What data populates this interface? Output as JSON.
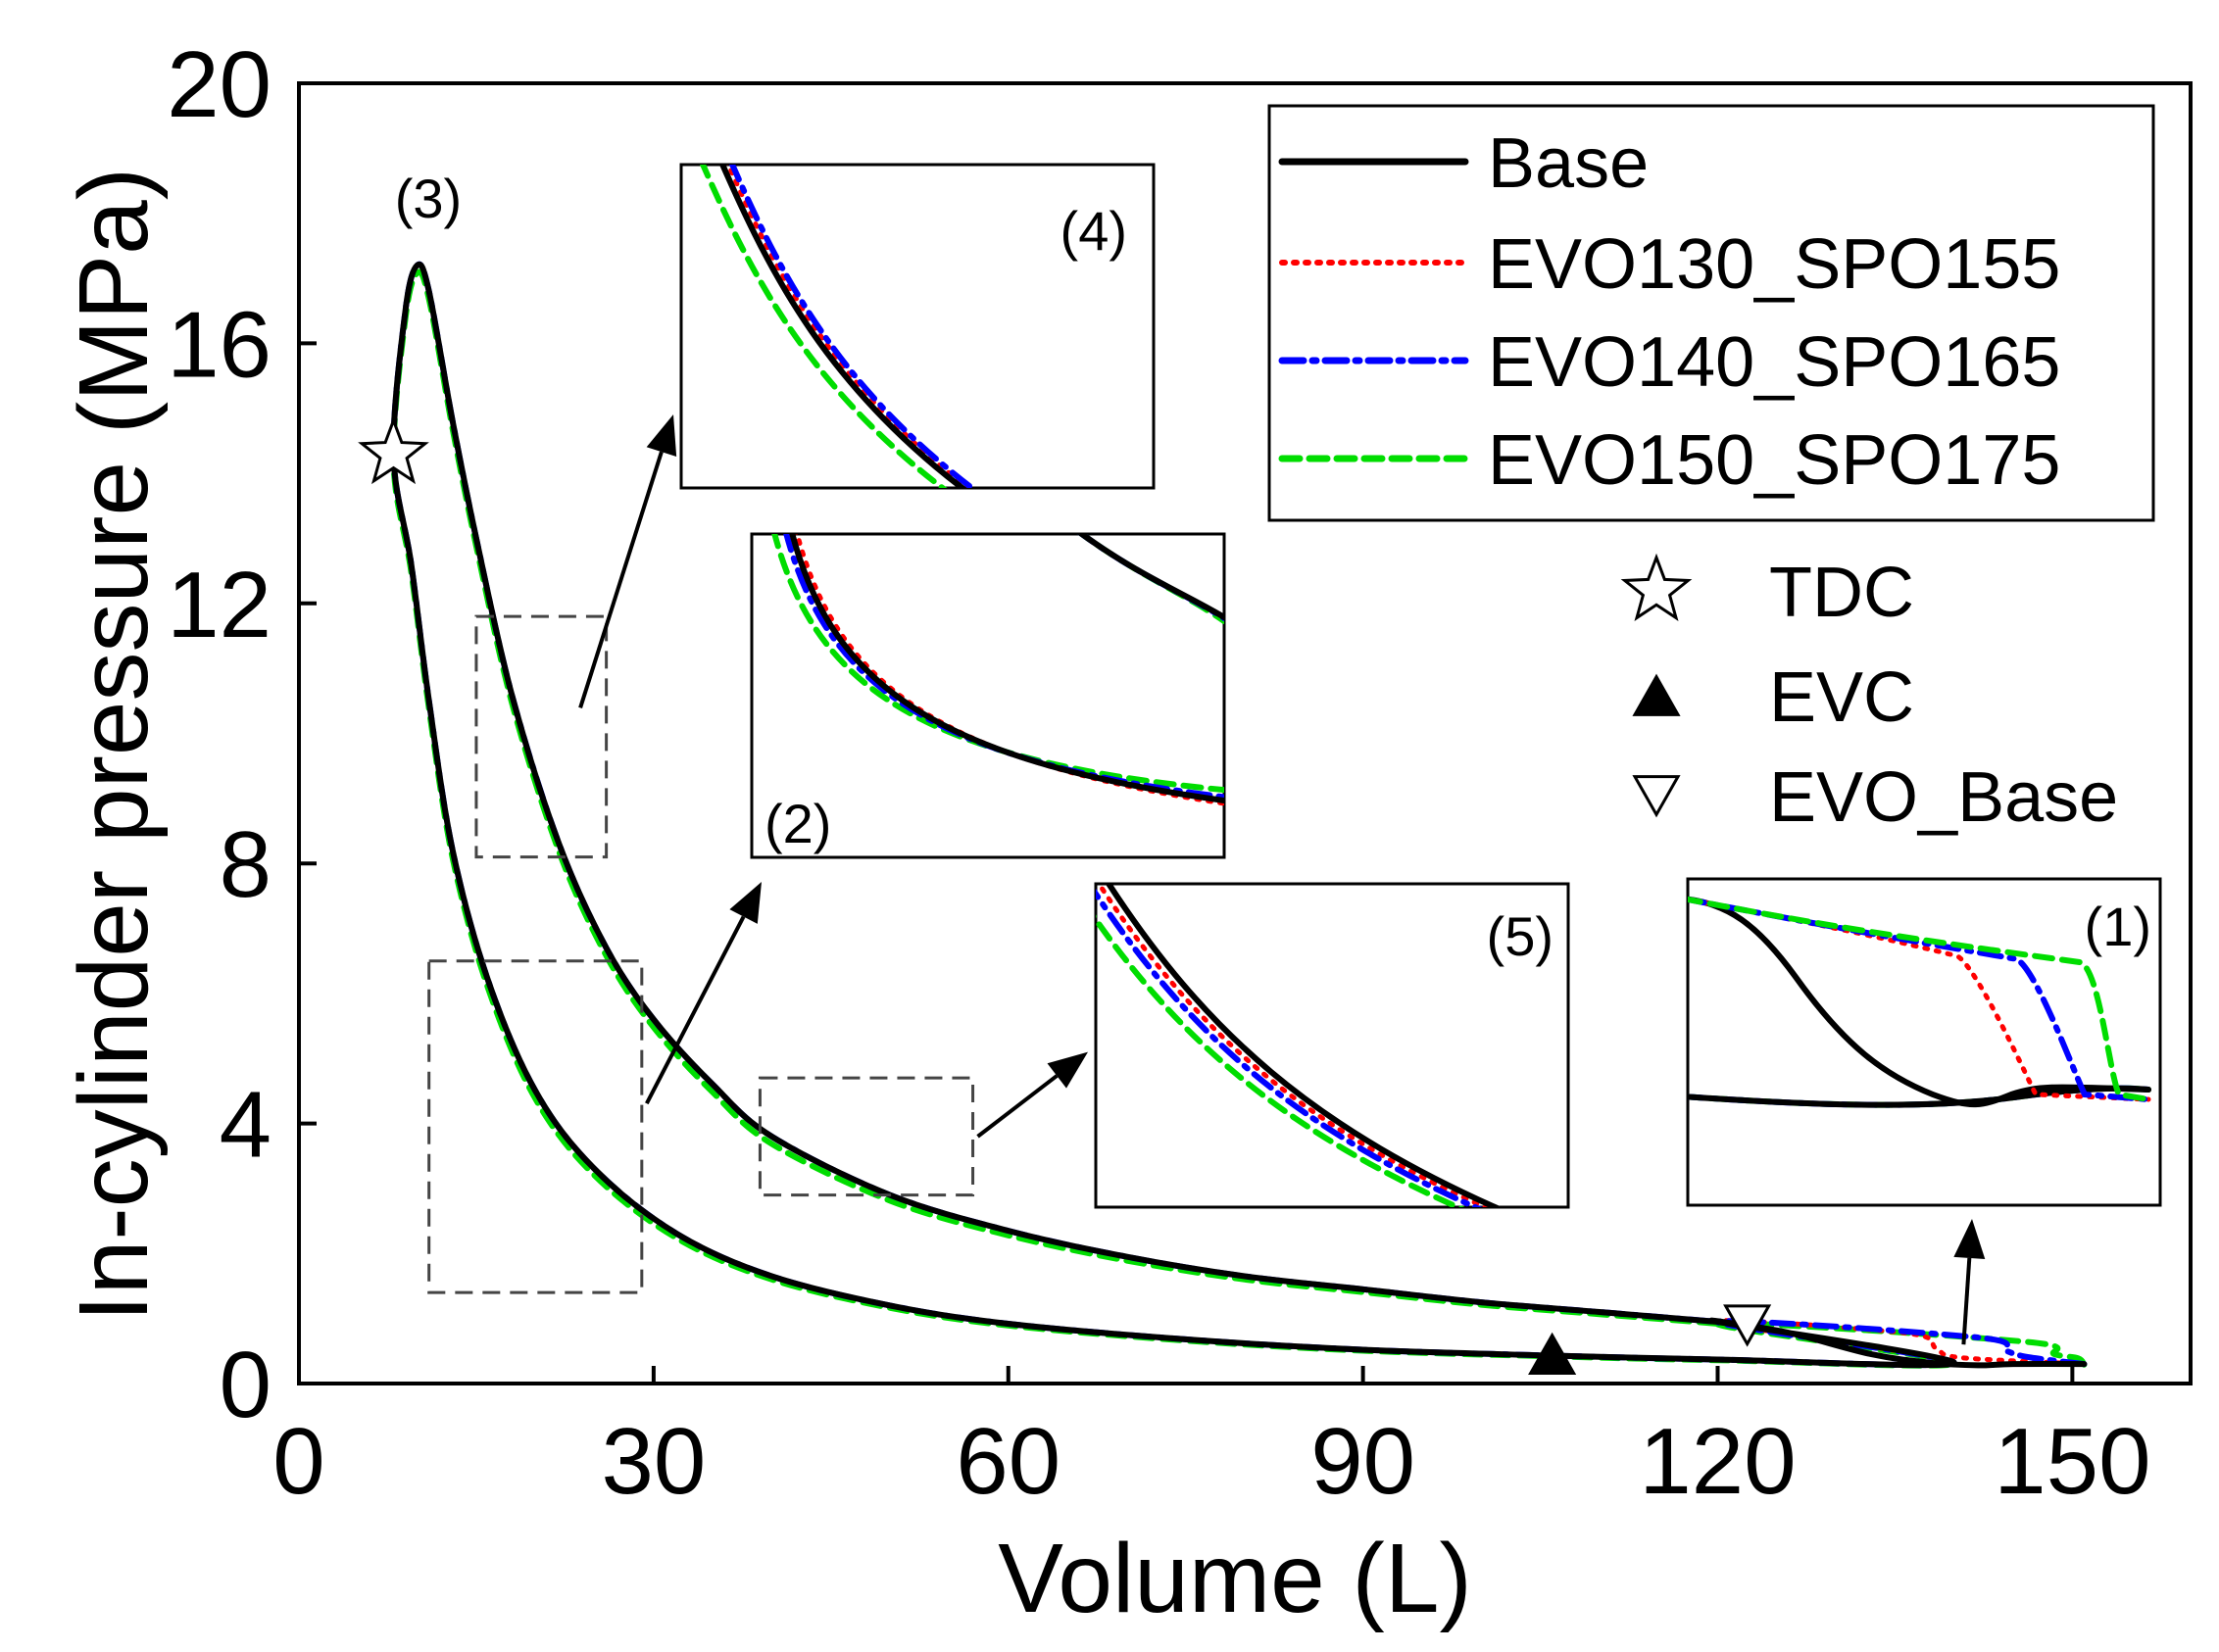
{
  "chart_data": {
    "type": "line",
    "title": "",
    "xlabel": "Volume (L)",
    "ylabel": "In-cylinder pressure (MPa)",
    "xlim": [
      0,
      160
    ],
    "ylim": [
      0,
      20
    ],
    "xticks": [
      0,
      30,
      60,
      90,
      120,
      150
    ],
    "yticks": [
      0,
      4,
      8,
      12,
      16,
      20
    ],
    "grid": false,
    "legend_position": "top-right",
    "series": [
      {
        "name": "Base",
        "color": "#000000",
        "style": "solid",
        "evo_volume": 126
      },
      {
        "name": "EVO130_SPO155",
        "color": "#ff0000",
        "style": "dotted",
        "evo_volume": 136
      },
      {
        "name": "EVO140_SPO165",
        "color": "#0000ff",
        "style": "dashdot",
        "evo_volume": 142
      },
      {
        "name": "EVO150_SPO175",
        "color": "#00dd00",
        "style": "dashed",
        "evo_volume": 146
      }
    ],
    "compression_curve": {
      "x": [
        151,
        140,
        120,
        106,
        90,
        75,
        60,
        50,
        40,
        32,
        25,
        20,
        16,
        13,
        11,
        9.5,
        8
      ],
      "y": [
        0.3,
        0.32,
        0.37,
        0.43,
        0.52,
        0.68,
        0.92,
        1.2,
        1.65,
        2.3,
        3.3,
        4.5,
        6.2,
        8.2,
        10.5,
        12.6,
        14.3
      ]
    },
    "expansion_curve": {
      "x": [
        8,
        9,
        10,
        11,
        13,
        15,
        18,
        22,
        26,
        30,
        35,
        40,
        50,
        60,
        70,
        80,
        90,
        100,
        110,
        120
      ],
      "y": [
        14.3,
        16.5,
        17.2,
        16.8,
        14.8,
        13.0,
        10.6,
        8.3,
        6.7,
        5.6,
        4.6,
        3.8,
        2.9,
        2.35,
        1.95,
        1.65,
        1.45,
        1.25,
        1.1,
        0.95
      ]
    },
    "markers": [
      {
        "label": "TDC",
        "symbol": "star",
        "x": 8,
        "y": 14.3
      },
      {
        "label": "EVC",
        "symbol": "filled-triangle",
        "x": 106,
        "y": 0.45
      },
      {
        "label": "EVO_Base",
        "symbol": "open-triangle-down",
        "x": 122.5,
        "y": 0.9
      }
    ],
    "annotations": [
      {
        "label": "(1)",
        "region_x": [
          118,
          153
        ],
        "region_y": [
          0.2,
          1.3
        ]
      },
      {
        "label": "(2)",
        "region_x": [
          11,
          29
        ],
        "region_y": [
          1.4,
          6.5
        ]
      },
      {
        "label": "(3)",
        "region_x": [
          8,
          12
        ],
        "region_y": [
          16,
          17.5
        ]
      },
      {
        "label": "(4)",
        "region_x": [
          15,
          26
        ],
        "region_y": [
          8.1,
          11.8
        ]
      },
      {
        "label": "(5)",
        "region_x": [
          39,
          57
        ],
        "region_y": [
          2.9,
          4.7
        ]
      }
    ]
  }
}
